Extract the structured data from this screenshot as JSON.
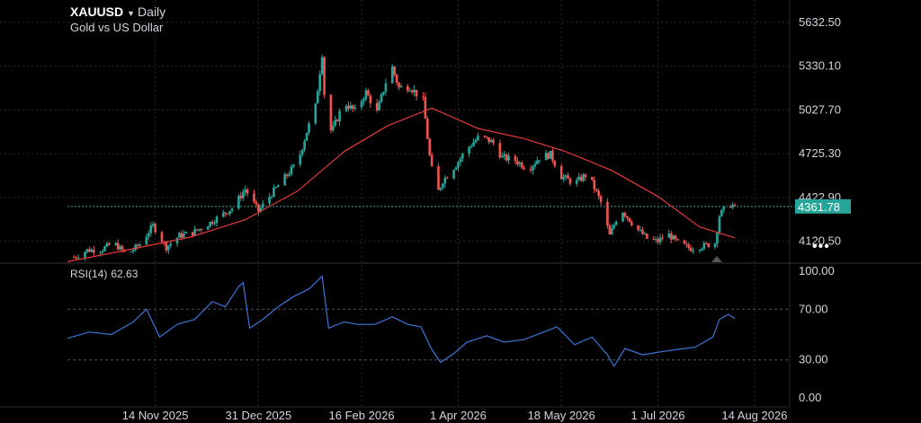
{
  "header": {
    "symbol": "XAUUSD",
    "interval": "Daily",
    "description": "Gold vs US Dollar",
    "caret_icon": "triangle-down-icon"
  },
  "price_badge": "4361.78",
  "rsi": {
    "label": "RSI(14)",
    "value": "62.63"
  },
  "more_menu_icon": "more-dots-icon",
  "colors": {
    "background": "#000000",
    "up": "#26a69a",
    "down": "#ef5350",
    "moving_average": "#e53935",
    "rsi_line": "#3d74d6",
    "badge": "#26a69a",
    "grid": "#2a2a2a",
    "text": "#d1d4dc"
  },
  "chart_data": [
    {
      "type": "candlestick",
      "title": "XAUUSD",
      "subtitle": "Gold vs US Dollar",
      "x_type": "date",
      "x_range": [
        "2025-10-05",
        "2026-08-30"
      ],
      "x_tick_labels": [
        "14 Nov 2025",
        "31 Dec 2025",
        "16 Feb 2026",
        "1 Apr 2026",
        "18 May 2026",
        "1 Jul 2026",
        "14 Aug 2026"
      ],
      "y_tick_labels": [
        "5632.50",
        "5330.10",
        "5027.70",
        "4725.30",
        "4422.90",
        "4120.50"
      ],
      "ylim": [
        3970,
        5700
      ],
      "grid": true,
      "last_price": 4361.78,
      "close_path": [
        [
          "2025-10-08",
          4010
        ],
        [
          "2025-10-14",
          4060
        ],
        [
          "2025-10-20",
          4060
        ],
        [
          "2025-10-26",
          4110
        ],
        [
          "2025-11-01",
          4030
        ],
        [
          "2025-11-07",
          4100
        ],
        [
          "2025-11-13",
          4230
        ],
        [
          "2025-11-19",
          4080
        ],
        [
          "2025-11-25",
          4160
        ],
        [
          "2025-12-01",
          4180
        ],
        [
          "2025-12-07",
          4230
        ],
        [
          "2025-12-13",
          4290
        ],
        [
          "2025-12-19",
          4350
        ],
        [
          "2025-12-25",
          4480
        ],
        [
          "2025-12-31",
          4330
        ],
        [
          "2026-01-06",
          4450
        ],
        [
          "2026-01-12",
          4560
        ],
        [
          "2026-01-18",
          4670
        ],
        [
          "2026-01-22",
          4880
        ],
        [
          "2026-01-26",
          5050
        ],
        [
          "2026-01-29",
          5420
        ],
        [
          "2026-01-31",
          4860
        ],
        [
          "2026-02-03",
          4900
        ],
        [
          "2026-02-08",
          5080
        ],
        [
          "2026-02-13",
          5020
        ],
        [
          "2026-02-18",
          5150
        ],
        [
          "2026-02-23",
          5010
        ],
        [
          "2026-02-27",
          5220
        ],
        [
          "2026-03-02",
          5320
        ],
        [
          "2026-03-05",
          5180
        ],
        [
          "2026-03-10",
          5190
        ],
        [
          "2026-03-16",
          5090
        ],
        [
          "2026-03-19",
          4710
        ],
        [
          "2026-03-22",
          4430
        ],
        [
          "2026-03-25",
          4540
        ],
        [
          "2026-03-31",
          4650
        ],
        [
          "2026-04-05",
          4760
        ],
        [
          "2026-04-11",
          4850
        ],
        [
          "2026-04-17",
          4800
        ],
        [
          "2026-04-21",
          4700
        ],
        [
          "2026-04-27",
          4680
        ],
        [
          "2026-05-03",
          4620
        ],
        [
          "2026-05-08",
          4700
        ],
        [
          "2026-05-13",
          4720
        ],
        [
          "2026-05-18",
          4570
        ],
        [
          "2026-05-24",
          4520
        ],
        [
          "2026-05-30",
          4590
        ],
        [
          "2026-06-05",
          4390
        ],
        [
          "2026-06-09",
          4160
        ],
        [
          "2026-06-14",
          4350
        ],
        [
          "2026-06-20",
          4230
        ],
        [
          "2026-06-26",
          4140
        ],
        [
          "2026-07-01",
          4120
        ],
        [
          "2026-07-05",
          4180
        ],
        [
          "2026-07-10",
          4110
        ],
        [
          "2026-07-16",
          4070
        ],
        [
          "2026-07-22",
          4090
        ],
        [
          "2026-07-27",
          4110
        ],
        [
          "2026-07-29",
          4300
        ],
        [
          "2026-08-02",
          4380
        ],
        [
          "2026-08-05",
          4361.78
        ]
      ],
      "moving_average": [
        [
          "2025-10-05",
          3980
        ],
        [
          "2025-11-01",
          4060
        ],
        [
          "2025-11-30",
          4150
        ],
        [
          "2025-12-25",
          4270
        ],
        [
          "2026-01-18",
          4470
        ],
        [
          "2026-02-08",
          4740
        ],
        [
          "2026-02-28",
          4920
        ],
        [
          "2026-03-20",
          5040
        ],
        [
          "2026-04-10",
          4900
        ],
        [
          "2026-05-01",
          4830
        ],
        [
          "2026-05-20",
          4740
        ],
        [
          "2026-06-10",
          4610
        ],
        [
          "2026-07-01",
          4430
        ],
        [
          "2026-07-20",
          4220
        ],
        [
          "2026-08-05",
          4145
        ]
      ]
    },
    {
      "type": "line",
      "title": "RSI(14)",
      "y_tick_labels": [
        "100.00",
        "70.00",
        "30.00",
        "0.00"
      ],
      "ylim": [
        0,
        100
      ],
      "reference_lines": [
        70,
        30
      ],
      "series": [
        {
          "name": "RSI(14)",
          "points": [
            [
              "2025-10-05",
              47
            ],
            [
              "2025-10-15",
              52
            ],
            [
              "2025-10-25",
              50
            ],
            [
              "2025-11-04",
              60
            ],
            [
              "2025-11-10",
              70
            ],
            [
              "2025-11-16",
              48
            ],
            [
              "2025-11-24",
              58
            ],
            [
              "2025-12-02",
              62
            ],
            [
              "2025-12-10",
              76
            ],
            [
              "2025-12-16",
              72
            ],
            [
              "2025-12-22",
              88
            ],
            [
              "2025-12-24",
              91
            ],
            [
              "2025-12-27",
              55
            ],
            [
              "2026-01-02",
              62
            ],
            [
              "2026-01-09",
              72
            ],
            [
              "2026-01-16",
              80
            ],
            [
              "2026-01-23",
              86
            ],
            [
              "2026-01-29",
              96
            ],
            [
              "2026-02-01",
              55
            ],
            [
              "2026-02-08",
              60
            ],
            [
              "2026-02-14",
              58
            ],
            [
              "2026-02-22",
              58
            ],
            [
              "2026-03-02",
              64
            ],
            [
              "2026-03-09",
              58
            ],
            [
              "2026-03-15",
              56
            ],
            [
              "2026-03-20",
              38
            ],
            [
              "2026-03-24",
              28
            ],
            [
              "2026-03-30",
              35
            ],
            [
              "2026-04-05",
              44
            ],
            [
              "2026-04-14",
              49
            ],
            [
              "2026-04-22",
              44
            ],
            [
              "2026-05-01",
              46
            ],
            [
              "2026-05-10",
              52
            ],
            [
              "2026-05-16",
              56
            ],
            [
              "2026-05-24",
              42
            ],
            [
              "2026-06-01",
              48
            ],
            [
              "2026-06-08",
              34
            ],
            [
              "2026-06-11",
              25
            ],
            [
              "2026-06-16",
              39
            ],
            [
              "2026-06-24",
              34
            ],
            [
              "2026-07-01",
              36
            ],
            [
              "2026-07-09",
              38
            ],
            [
              "2026-07-18",
              40
            ],
            [
              "2026-07-26",
              48
            ],
            [
              "2026-07-29",
              62
            ],
            [
              "2026-08-02",
              66
            ],
            [
              "2026-08-05",
              62.63
            ]
          ]
        }
      ]
    }
  ]
}
